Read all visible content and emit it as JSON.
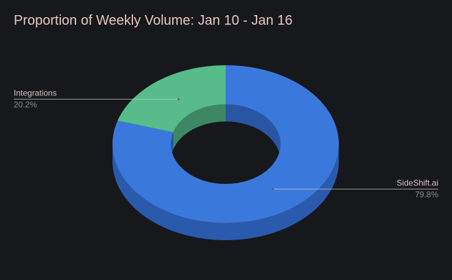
{
  "chart_data": {
    "type": "pie",
    "variant": "3d-donut",
    "title": "Proportion of Weekly Volume: Jan 10 - Jan 16",
    "slices": [
      {
        "name": "SideShift.ai",
        "value": 79.8,
        "label": "79.8%",
        "color": "#3b78dc",
        "side_color": "#2a5aab"
      },
      {
        "name": "Integrations",
        "value": 20.2,
        "label": "20.2%",
        "color": "#57bb8a",
        "side_color": "#3f8d69"
      }
    ],
    "legend": "none",
    "background": "#17181c"
  }
}
